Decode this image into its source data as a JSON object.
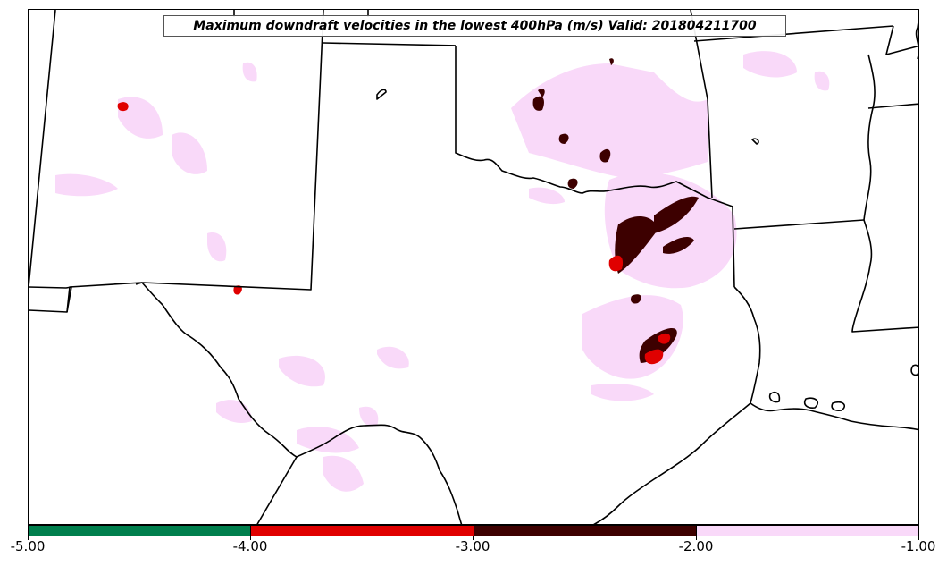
{
  "map": {
    "title": "Maximum downdraft velocities in the lowest 400hPa (m/s) Valid: 201804211700"
  },
  "colorbar": {
    "ticks": [
      "-5.00",
      "-4.00",
      "-3.00",
      "-2.00",
      "-1.00"
    ],
    "colors": [
      "#007f4d",
      "#e00000",
      "#3d0000",
      "#f9d9f9"
    ]
  }
}
